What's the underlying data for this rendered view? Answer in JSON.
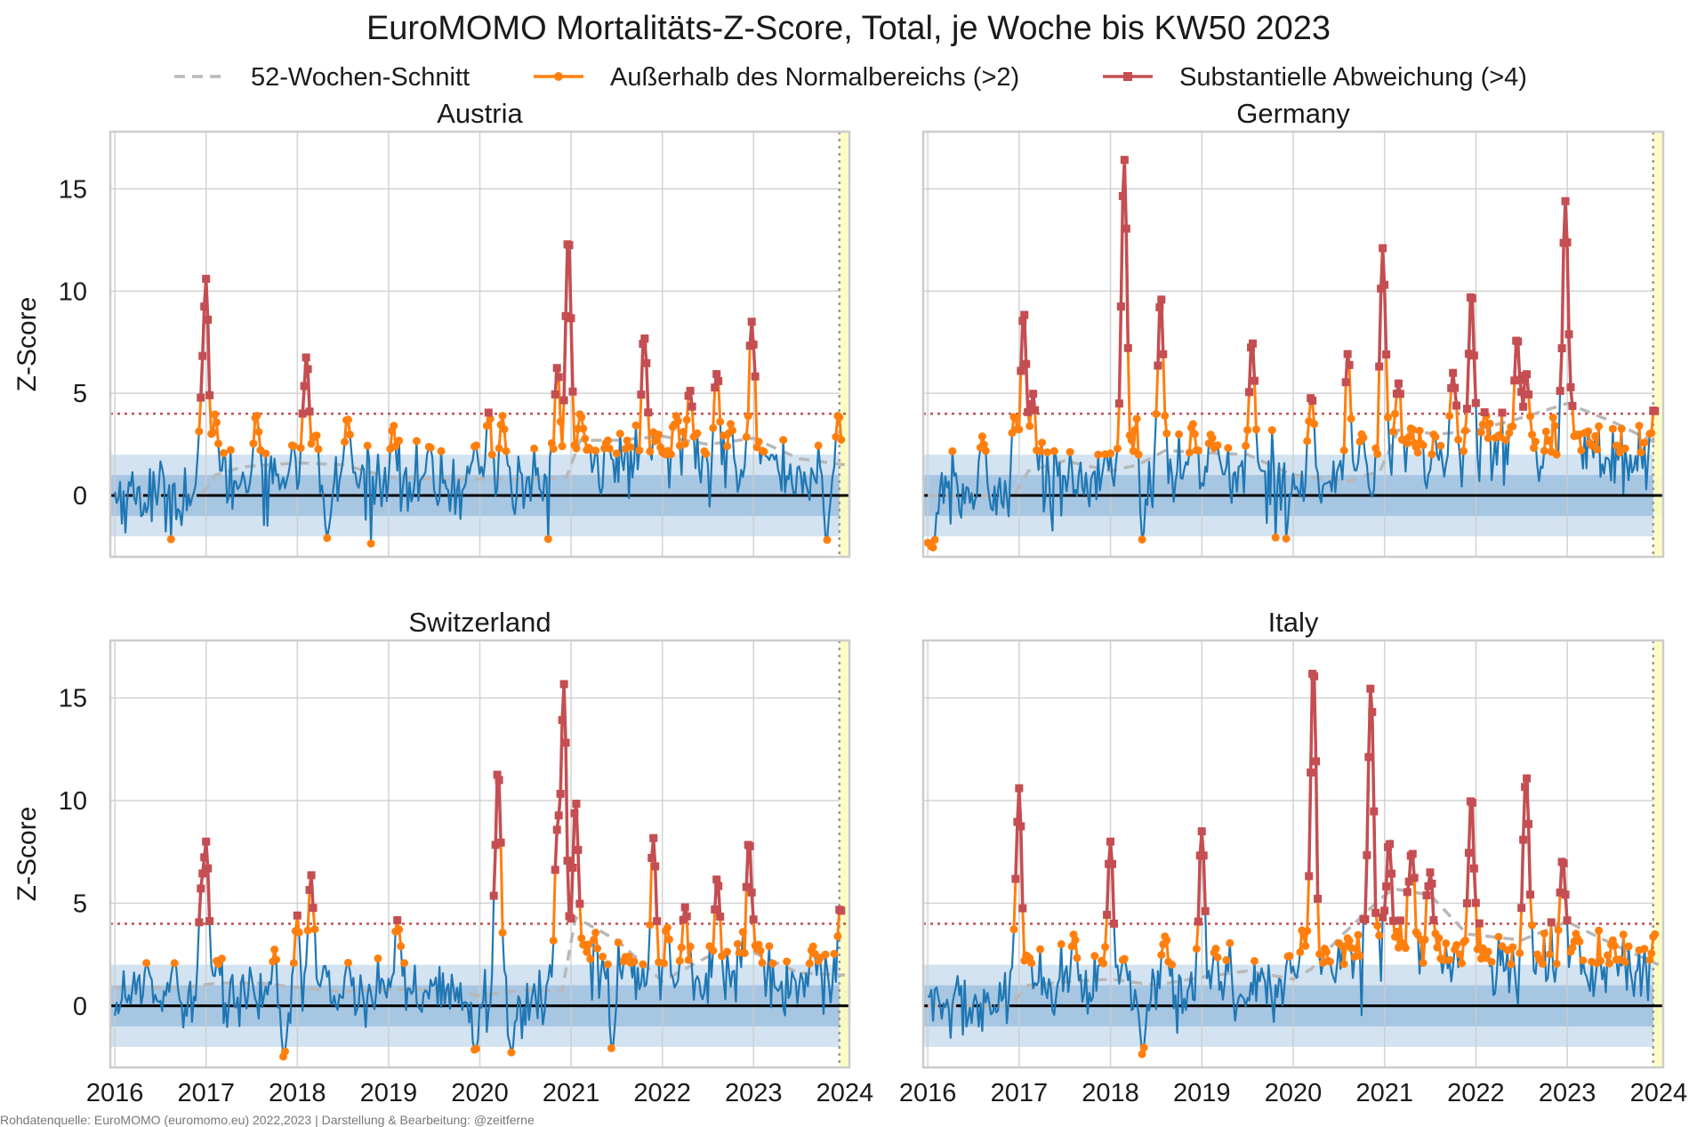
{
  "title": "EuroMOMO Mortalitäts-Z-Score, Total, je Woche bis KW50 2023",
  "source": "Rohdatenquelle: EuroMOMO (euromomo.eu) 2022,2023 | Darstellung & Bearbeitung: @zeitferne",
  "legend": [
    {
      "label": "52-Wochen-Schnitt",
      "color": "#b8b8b8",
      "style": "dashed"
    },
    {
      "label": "Außerhalb des Normalbereichs (>2)",
      "color": "#ff7f0e",
      "style": "line-circle"
    },
    {
      "label": "Substantielle Abweichung (>4)",
      "color": "#c44e52",
      "style": "line-square"
    }
  ],
  "colors": {
    "zscore_line": "#1f77b4",
    "above2": "#ff7f0e",
    "above4": "#c44e52",
    "rolling": "#b8b8b8",
    "band_inner": "#a7c6e2",
    "band_outer": "#d3e3f1",
    "zero_line": "#000000",
    "threshold_line": "#c44e52",
    "current_week_highlight": "#fffec0"
  },
  "chart_data": {
    "type": "line",
    "x_unit": "year (weekly data)",
    "x_ticks": [
      "2016",
      "2017",
      "2018",
      "2019",
      "2020",
      "2021",
      "2022",
      "2023",
      "2024"
    ],
    "xlim": [
      2015.95,
      2024.05
    ],
    "ylim": [
      -3,
      17.8
    ],
    "y_ticks": [
      0,
      5,
      10,
      15
    ],
    "ylabel": "Z-Score",
    "normal_band_inner": [
      -1,
      1
    ],
    "normal_band_outer": [
      -2,
      2
    ],
    "threshold_line": 4,
    "last_week": 2023.96,
    "grid": true,
    "legend_position": "top-center",
    "panels": [
      {
        "name": "Austria",
        "peaks": [
          [
            2016.95,
            3.5
          ],
          [
            2017.0,
            10.6
          ],
          [
            2017.1,
            4.0
          ],
          [
            2017.55,
            4.0
          ],
          [
            2017.95,
            2.5
          ],
          [
            2018.1,
            6.8
          ],
          [
            2018.2,
            3.0
          ],
          [
            2018.33,
            -2.1
          ],
          [
            2018.55,
            3.8
          ],
          [
            2019.05,
            3.5
          ],
          [
            2019.45,
            2.4
          ],
          [
            2019.95,
            2.5
          ],
          [
            2020.1,
            4.1
          ],
          [
            2020.25,
            3.9
          ],
          [
            2020.85,
            6.3
          ],
          [
            2020.97,
            12.8
          ],
          [
            2021.1,
            4.0
          ],
          [
            2021.4,
            2.7
          ],
          [
            2021.8,
            7.8
          ],
          [
            2021.95,
            3.0
          ],
          [
            2022.15,
            3.9
          ],
          [
            2022.3,
            5.2
          ],
          [
            2022.6,
            6.0
          ],
          [
            2022.75,
            3.5
          ],
          [
            2022.98,
            8.5
          ],
          [
            2023.1,
            2.2
          ],
          [
            2023.8,
            -2.2
          ],
          [
            2023.93,
            4.0
          ]
        ],
        "rolling": [
          [
            2016.0,
            0.0
          ],
          [
            2016.95,
            0.0
          ],
          [
            2017.1,
            1.0
          ],
          [
            2017.4,
            1.4
          ],
          [
            2018.0,
            1.6
          ],
          [
            2018.5,
            1.5
          ],
          [
            2019.0,
            0.9
          ],
          [
            2019.5,
            0.8
          ],
          [
            2020.0,
            0.8
          ],
          [
            2020.5,
            0.8
          ],
          [
            2020.95,
            0.9
          ],
          [
            2021.1,
            2.7
          ],
          [
            2021.5,
            2.7
          ],
          [
            2022.0,
            2.9
          ],
          [
            2022.5,
            2.5
          ],
          [
            2023.0,
            2.8
          ],
          [
            2023.5,
            1.8
          ],
          [
            2024.0,
            1.5
          ]
        ]
      },
      {
        "name": "Germany",
        "peaks": [
          [
            2016.0,
            -2.2
          ],
          [
            2016.05,
            -2.6
          ],
          [
            2016.6,
            2.9
          ],
          [
            2016.95,
            4.0
          ],
          [
            2017.05,
            9.1
          ],
          [
            2017.15,
            5.0
          ],
          [
            2017.95,
            2.1
          ],
          [
            2018.15,
            16.5
          ],
          [
            2018.3,
            5.0
          ],
          [
            2018.35,
            -2.2
          ],
          [
            2018.55,
            9.8
          ],
          [
            2018.9,
            3.5
          ],
          [
            2019.1,
            3.0
          ],
          [
            2019.55,
            7.6
          ],
          [
            2020.2,
            4.9
          ],
          [
            2020.6,
            7.0
          ],
          [
            2020.75,
            3.0
          ],
          [
            2020.98,
            12.1
          ],
          [
            2021.15,
            5.5
          ],
          [
            2021.3,
            3.3
          ],
          [
            2021.75,
            6.0
          ],
          [
            2021.95,
            10.0
          ],
          [
            2022.1,
            4.1
          ],
          [
            2022.45,
            7.8
          ],
          [
            2022.55,
            6.0
          ],
          [
            2022.98,
            14.4
          ],
          [
            2023.1,
            3.0
          ],
          [
            2023.95,
            4.3
          ]
        ],
        "rolling": [
          [
            2016.0,
            0.0
          ],
          [
            2016.95,
            0.0
          ],
          [
            2017.1,
            1.2
          ],
          [
            2017.5,
            1.7
          ],
          [
            2018.0,
            1.2
          ],
          [
            2018.3,
            1.5
          ],
          [
            2018.6,
            2.2
          ],
          [
            2019.0,
            2.1
          ],
          [
            2019.5,
            2.0
          ],
          [
            2020.0,
            1.0
          ],
          [
            2020.6,
            0.7
          ],
          [
            2020.95,
            1.2
          ],
          [
            2021.15,
            3.2
          ],
          [
            2021.6,
            3.0
          ],
          [
            2022.0,
            3.2
          ],
          [
            2022.5,
            3.8
          ],
          [
            2023.0,
            4.5
          ],
          [
            2023.5,
            3.6
          ],
          [
            2024.0,
            2.5
          ]
        ]
      },
      {
        "name": "Switzerland",
        "peaks": [
          [
            2016.35,
            2.1
          ],
          [
            2016.65,
            2.1
          ],
          [
            2016.95,
            5.3
          ],
          [
            2017.0,
            8.0
          ],
          [
            2017.12,
            2.2
          ],
          [
            2017.85,
            -2.5
          ],
          [
            2018.0,
            4.4
          ],
          [
            2018.15,
            6.4
          ],
          [
            2018.3,
            2.0
          ],
          [
            2018.55,
            2.1
          ],
          [
            2019.1,
            4.2
          ],
          [
            2019.95,
            -2.2
          ],
          [
            2020.2,
            11.6
          ],
          [
            2020.35,
            -2.3
          ],
          [
            2020.85,
            8.2
          ],
          [
            2020.92,
            15.7
          ],
          [
            2021.05,
            10.0
          ],
          [
            2021.45,
            -2.2
          ],
          [
            2021.6,
            2.4
          ],
          [
            2021.9,
            8.2
          ],
          [
            2022.05,
            3.9
          ],
          [
            2022.25,
            4.8
          ],
          [
            2022.6,
            6.2
          ],
          [
            2022.95,
            8.1
          ],
          [
            2023.05,
            3.0
          ],
          [
            2023.65,
            2.9
          ],
          [
            2023.95,
            4.8
          ]
        ],
        "rolling": [
          [
            2016.0,
            0.9
          ],
          [
            2016.8,
            0.9
          ],
          [
            2017.1,
            1.1
          ],
          [
            2017.6,
            1.1
          ],
          [
            2018.0,
            0.9
          ],
          [
            2018.5,
            0.7
          ],
          [
            2019.0,
            0.8
          ],
          [
            2019.5,
            0.8
          ],
          [
            2020.0,
            0.5
          ],
          [
            2020.5,
            0.8
          ],
          [
            2020.9,
            0.7
          ],
          [
            2021.05,
            4.3
          ],
          [
            2021.5,
            3.2
          ],
          [
            2022.0,
            1.2
          ],
          [
            2022.5,
            2.4
          ],
          [
            2023.0,
            2.6
          ],
          [
            2023.5,
            1.6
          ],
          [
            2024.0,
            1.5
          ]
        ]
      },
      {
        "name": "Italy",
        "peaks": [
          [
            2016.95,
            2.2
          ],
          [
            2017.0,
            10.6
          ],
          [
            2017.1,
            2.4
          ],
          [
            2017.6,
            3.5
          ],
          [
            2017.9,
            2.2
          ],
          [
            2018.0,
            8.0
          ],
          [
            2018.15,
            2.3
          ],
          [
            2018.35,
            -2.4
          ],
          [
            2018.6,
            3.4
          ],
          [
            2019.0,
            8.5
          ],
          [
            2019.15,
            2.8
          ],
          [
            2019.95,
            2.5
          ],
          [
            2020.1,
            3.7
          ],
          [
            2020.22,
            16.8
          ],
          [
            2020.35,
            2.8
          ],
          [
            2020.6,
            3.3
          ],
          [
            2020.85,
            15.6
          ],
          [
            2021.05,
            8.0
          ],
          [
            2021.3,
            7.5
          ],
          [
            2021.5,
            6.5
          ],
          [
            2021.95,
            10.3
          ],
          [
            2022.1,
            2.4
          ],
          [
            2022.55,
            11.3
          ],
          [
            2022.7,
            2.3
          ],
          [
            2022.95,
            7.2
          ],
          [
            2023.1,
            3.5
          ],
          [
            2023.5,
            3.2
          ],
          [
            2023.95,
            3.5
          ]
        ],
        "rolling": [
          [
            2016.0,
            0.0
          ],
          [
            2016.9,
            0.0
          ],
          [
            2017.1,
            1.0
          ],
          [
            2017.6,
            1.2
          ],
          [
            2018.0,
            1.3
          ],
          [
            2018.5,
            1.0
          ],
          [
            2019.0,
            1.4
          ],
          [
            2019.5,
            1.7
          ],
          [
            2020.0,
            1.3
          ],
          [
            2020.2,
            1.8
          ],
          [
            2020.5,
            3.3
          ],
          [
            2020.95,
            5.2
          ],
          [
            2021.1,
            5.7
          ],
          [
            2021.5,
            5.4
          ],
          [
            2021.9,
            3.5
          ],
          [
            2022.5,
            3.2
          ],
          [
            2023.0,
            4.1
          ],
          [
            2023.5,
            3.0
          ],
          [
            2024.0,
            2.0
          ]
        ]
      }
    ]
  }
}
